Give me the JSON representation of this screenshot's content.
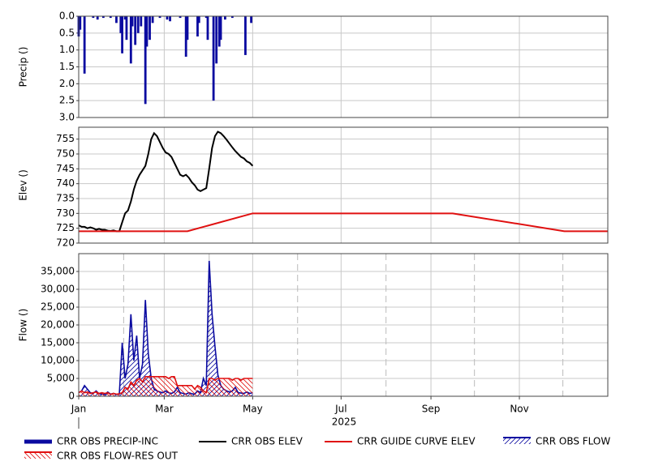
{
  "chart_data": [
    {
      "type": "bar",
      "ylabel": "Precip ()",
      "ylim": [
        0,
        3
      ],
      "y_inverted": true,
      "yticks": [
        {
          "value": 0,
          "label": "0.0"
        },
        0.5,
        {
          "value": 1,
          "label": "1.0"
        },
        1.5,
        {
          "value": 2,
          "label": "2.0"
        },
        2.5,
        {
          "value": 3,
          "label": "3.0"
        }
      ],
      "xlim": [
        0,
        365
      ],
      "xgrid": [
        59,
        120,
        181,
        243,
        304
      ],
      "grid": true,
      "series": [
        {
          "name": "CRR OBS PRECIP-INC",
          "color": "#0a0aa0",
          "x": [
            0,
            1,
            4,
            10,
            13,
            17,
            22,
            26,
            29,
            30,
            32,
            33,
            36,
            37,
            39,
            41,
            43,
            46,
            47,
            49,
            51,
            56,
            61,
            63,
            70,
            74,
            75,
            82,
            83,
            88,
            89,
            93,
            95,
            97,
            98,
            101,
            106,
            115,
            119
          ],
          "values": [
            0.6,
            0.4,
            1.7,
            0.05,
            0.1,
            0.05,
            0.05,
            0.2,
            0.5,
            1.1,
            0.1,
            0.7,
            1.4,
            0.3,
            0.85,
            0.5,
            0.3,
            2.6,
            0.9,
            0.7,
            0.2,
            0.05,
            0.1,
            0.15,
            0.05,
            1.2,
            0.7,
            0.6,
            0.2,
            0.05,
            0.7,
            2.5,
            1.4,
            0.9,
            0.7,
            0.1,
            0.05,
            1.15,
            0.2
          ]
        }
      ]
    },
    {
      "type": "line",
      "ylabel": "Elev ()",
      "ylim": [
        720,
        759
      ],
      "yticks": [
        720,
        725,
        730,
        735,
        740,
        745,
        750,
        755
      ],
      "xlim": [
        0,
        365
      ],
      "xgrid": [
        59,
        120,
        181,
        243,
        304
      ],
      "grid": true,
      "series": [
        {
          "name": "CRR OBS ELEV",
          "color": "#000000",
          "x": [
            0,
            2,
            4,
            6,
            8,
            10,
            12,
            14,
            16,
            18,
            20,
            22,
            24,
            26,
            28,
            30,
            32,
            34,
            36,
            38,
            40,
            42,
            44,
            46,
            48,
            50,
            52,
            54,
            56,
            58,
            60,
            62,
            64,
            66,
            68,
            70,
            72,
            74,
            76,
            78,
            80,
            82,
            84,
            86,
            88,
            90,
            92,
            94,
            96,
            98,
            100,
            102,
            104,
            106,
            108,
            110,
            112,
            114,
            116,
            118,
            120
          ],
          "values": [
            726,
            725.5,
            725.5,
            725,
            725.3,
            725,
            724.5,
            724.8,
            724.5,
            724.5,
            724.2,
            724.1,
            724.3,
            724,
            724,
            727,
            730,
            731,
            734,
            738,
            741,
            743,
            744.5,
            746,
            750,
            755,
            757,
            756,
            754,
            752,
            750.5,
            750,
            749,
            747,
            745,
            743,
            742.5,
            743,
            742,
            740.5,
            739.5,
            738,
            737.5,
            738,
            738.5,
            745,
            752,
            756,
            757.5,
            757,
            756,
            754.8,
            753.5,
            752.2,
            751,
            750,
            749,
            748.5,
            747.5,
            747,
            746
          ]
        },
        {
          "name": "CRR GUIDE CURVE ELEV",
          "color": "#e01010",
          "x": [
            0,
            75,
            120,
            258,
            335,
            365
          ],
          "values": [
            724,
            724,
            730,
            730,
            724,
            724
          ]
        }
      ]
    },
    {
      "type": "area",
      "ylabel": "Flow ()",
      "ylim": [
        0,
        40000
      ],
      "yticks": [
        0,
        {
          "value": 5000,
          "label": "5,000"
        },
        {
          "value": 10000,
          "label": "10,000"
        },
        {
          "value": 15000,
          "label": "15,000"
        },
        {
          "value": 20000,
          "label": "20,000"
        },
        {
          "value": 25000,
          "label": "25,000"
        },
        {
          "value": 30000,
          "label": "30,000"
        },
        {
          "value": 35000,
          "label": "35,000"
        }
      ],
      "xlim": [
        0,
        365
      ],
      "xticks": [
        {
          "value": 0,
          "label": "Jan"
        },
        {
          "value": 59,
          "label": "Mar"
        },
        {
          "value": 120,
          "label": "May"
        },
        {
          "value": 181,
          "label": "Jul"
        },
        {
          "value": 243,
          "label": "Sep"
        },
        {
          "value": 304,
          "label": "Nov"
        }
      ],
      "dashed_gridlines": [
        31,
        90,
        151,
        212,
        273,
        334
      ],
      "grid": true,
      "x_year": "2025",
      "series": [
        {
          "name": "CRR OBS FLOW",
          "color": "#0a0aa0",
          "hatch": "/",
          "x": [
            0,
            2,
            4,
            6,
            8,
            10,
            12,
            14,
            16,
            18,
            20,
            22,
            24,
            26,
            28,
            30,
            32,
            34,
            36,
            38,
            40,
            42,
            44,
            46,
            48,
            50,
            52,
            54,
            56,
            58,
            60,
            62,
            64,
            66,
            68,
            70,
            72,
            74,
            76,
            78,
            80,
            82,
            84,
            86,
            88,
            90,
            92,
            94,
            96,
            98,
            100,
            102,
            104,
            106,
            108,
            110,
            112,
            114,
            116,
            118,
            120
          ],
          "values": [
            1000,
            1500,
            3000,
            2000,
            1000,
            800,
            1500,
            700,
            600,
            500,
            1200,
            600,
            800,
            500,
            600,
            15000,
            5000,
            9000,
            23000,
            10000,
            17000,
            5000,
            9000,
            27000,
            12000,
            5000,
            2000,
            1500,
            1200,
            1000,
            1500,
            1000,
            800,
            1200,
            2500,
            1000,
            800,
            600,
            1000,
            700,
            600,
            1500,
            1000,
            5000,
            3000,
            38000,
            23000,
            14000,
            6000,
            3000,
            2000,
            1500,
            1200,
            1500,
            2500,
            1000,
            900,
            800,
            1200,
            800,
            1000
          ]
        },
        {
          "name": "CRR OBS FLOW-RES OUT",
          "color": "#e01010",
          "hatch": "\\",
          "x": [
            0,
            2,
            4,
            6,
            8,
            10,
            12,
            14,
            16,
            18,
            20,
            22,
            24,
            26,
            28,
            30,
            32,
            34,
            36,
            38,
            40,
            42,
            44,
            46,
            48,
            50,
            52,
            54,
            56,
            58,
            60,
            62,
            64,
            66,
            68,
            70,
            72,
            74,
            76,
            78,
            80,
            82,
            84,
            86,
            88,
            90,
            92,
            94,
            96,
            98,
            100,
            102,
            104,
            106,
            108,
            110,
            112,
            114,
            116,
            118,
            120
          ],
          "values": [
            1000,
            1500,
            1000,
            1200,
            800,
            1000,
            1200,
            800,
            1000,
            800,
            1000,
            500,
            800,
            600,
            700,
            1000,
            2500,
            2000,
            4000,
            3000,
            4500,
            5000,
            4000,
            5500,
            5500,
            5500,
            5500,
            5500,
            5500,
            5500,
            5500,
            5000,
            5500,
            5500,
            3000,
            3000,
            3000,
            3000,
            3000,
            3000,
            2000,
            3000,
            2500,
            1500,
            1000,
            5000,
            5000,
            4500,
            5000,
            5000,
            5000,
            5000,
            5000,
            4500,
            5000,
            5000,
            4500,
            5000,
            5000,
            5000,
            5000
          ]
        }
      ]
    }
  ]
}
